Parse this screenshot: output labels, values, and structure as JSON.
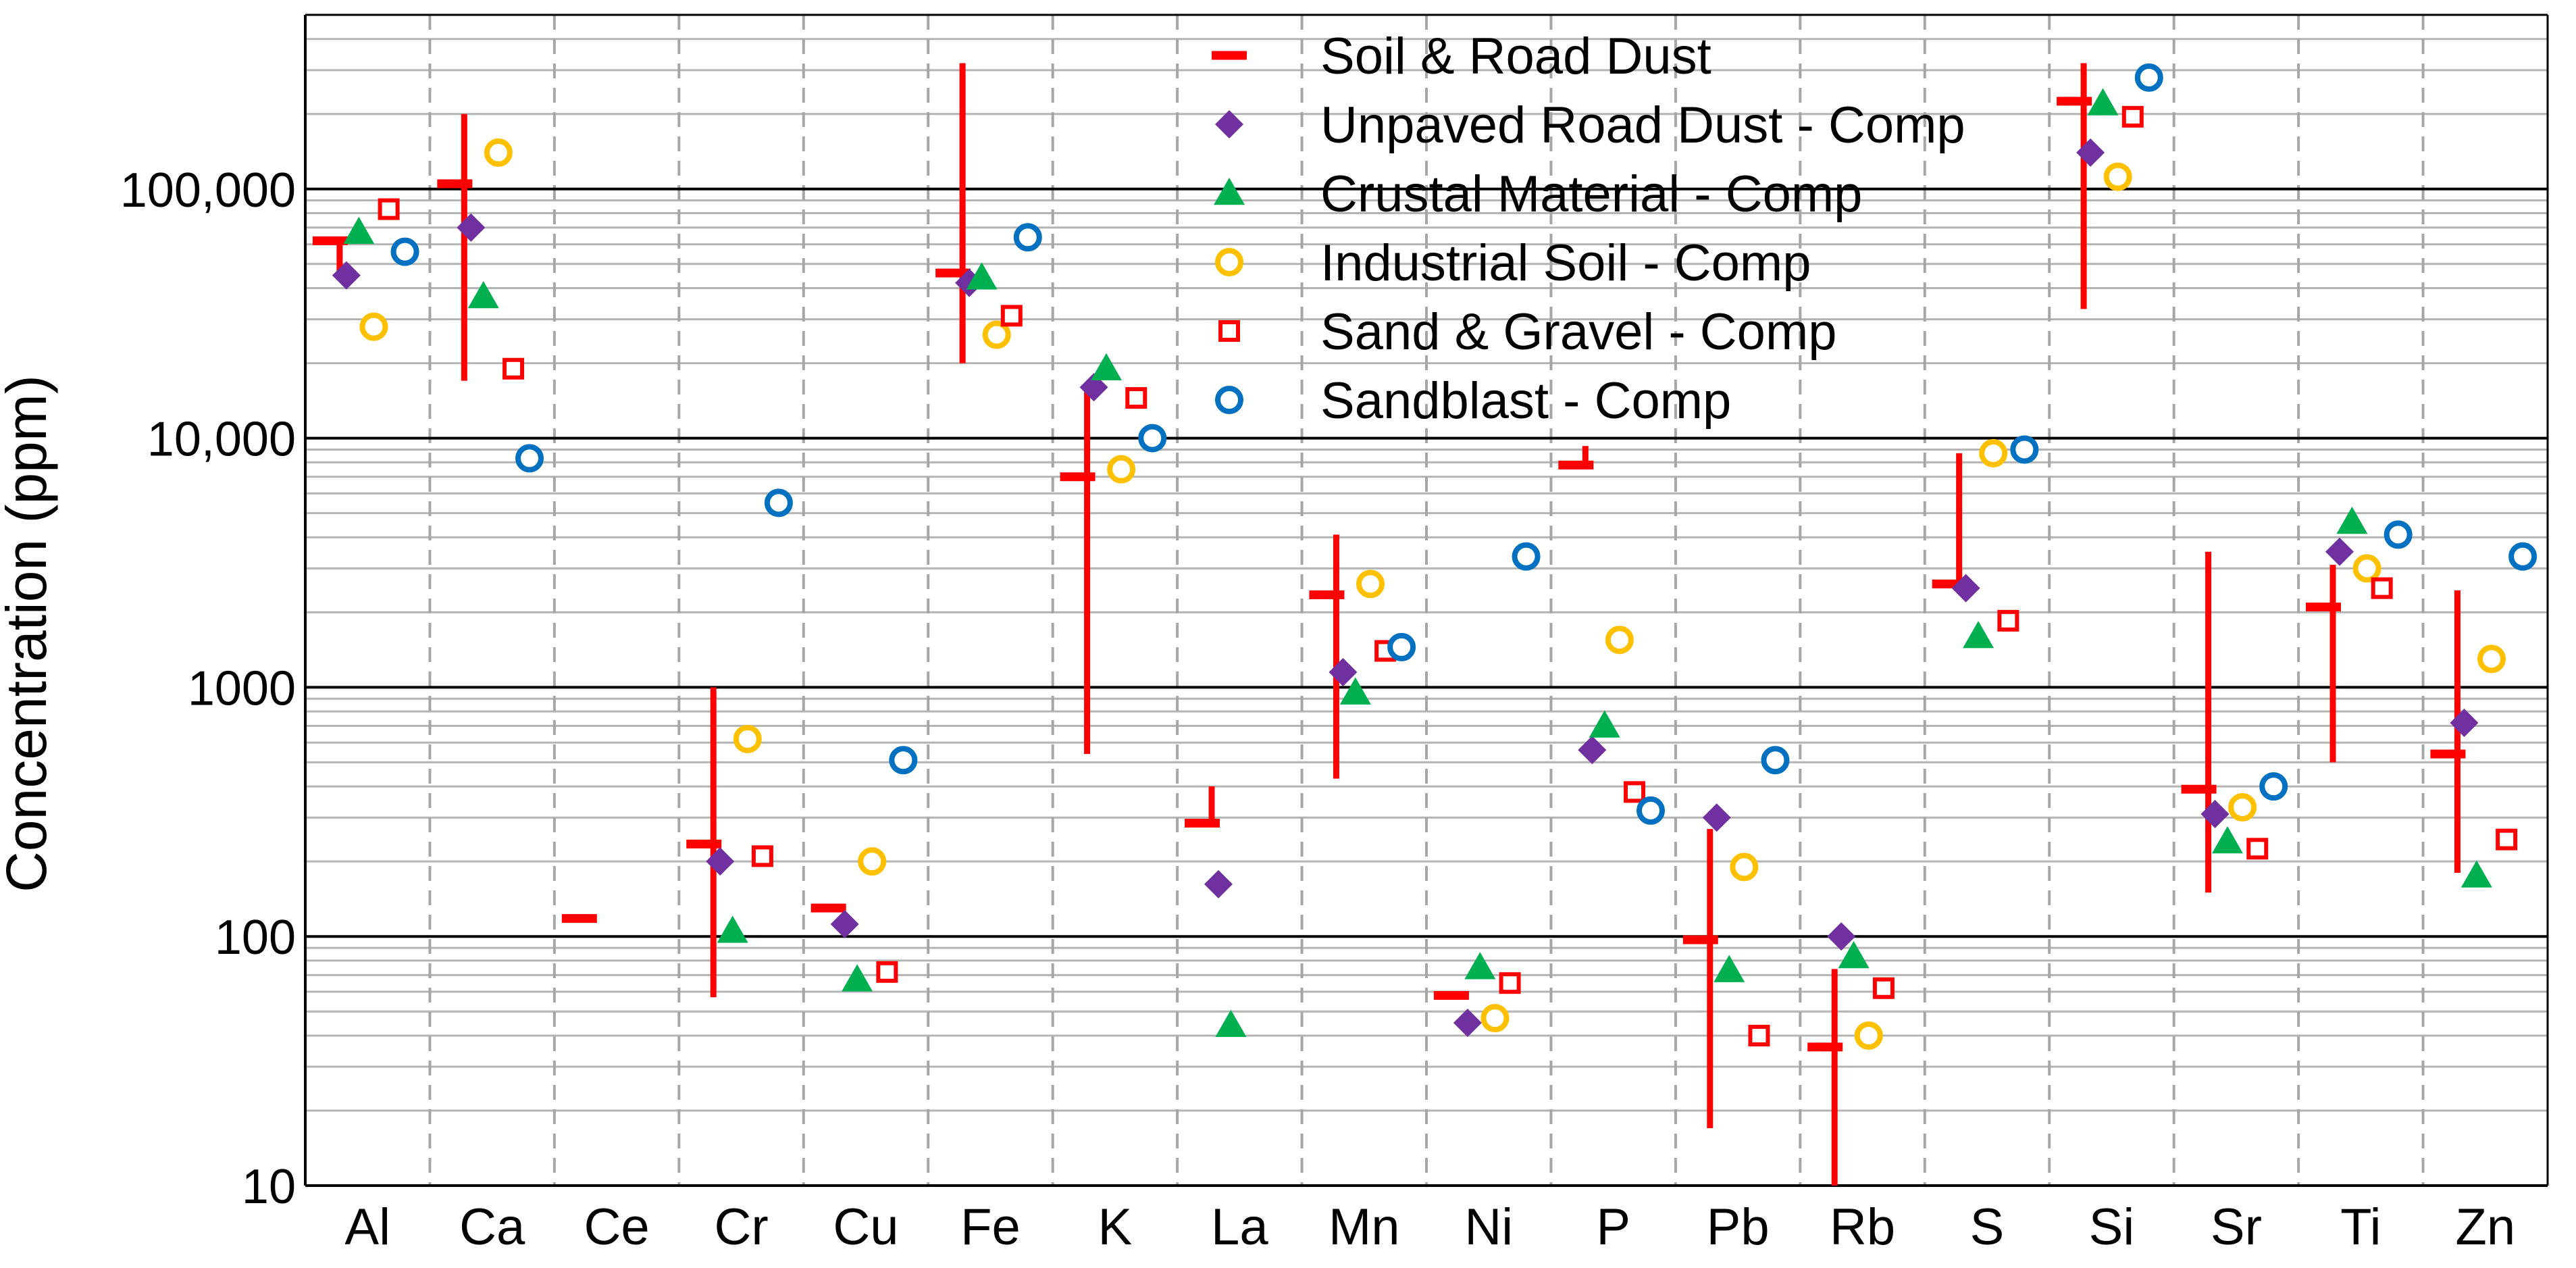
{
  "chart_data": {
    "type": "scatter",
    "ylabel": "Concentration (ppm)",
    "yscale": "log",
    "ylim": [
      10,
      500000
    ],
    "yticks": [
      {
        "value": 10,
        "label": "10"
      },
      {
        "value": 100,
        "label": "100"
      },
      {
        "value": 1000,
        "label": "1000"
      },
      {
        "value": 10000,
        "label": "10,000"
      },
      {
        "value": 100000,
        "label": "100,000"
      }
    ],
    "categories": [
      "Al",
      "Ca",
      "Ce",
      "Cr",
      "Cu",
      "Fe",
      "K",
      "La",
      "Mn",
      "Ni",
      "P",
      "Pb",
      "Rb",
      "S",
      "Si",
      "Sr",
      "Ti",
      "Zn"
    ],
    "grid": true,
    "legend_position": "top-center",
    "series": [
      {
        "name": "Soil & Road Dust",
        "marker": "dash-range",
        "color": "#FF0000",
        "values": [
          62000,
          105000,
          118,
          235,
          130,
          46000,
          7000,
          285,
          2350,
          58,
          7800,
          97,
          36,
          2600,
          225000,
          390,
          2100,
          540
        ],
        "ranges": [
          [
            46000,
            62000
          ],
          [
            17000,
            200000
          ],
          null,
          [
            57,
            1000
          ],
          null,
          [
            20000,
            320000
          ],
          [
            540,
            15500
          ],
          [
            285,
            400
          ],
          [
            430,
            4100
          ],
          null,
          [
            7800,
            9300
          ],
          [
            17,
            270
          ],
          [
            10,
            74
          ],
          [
            2600,
            8700
          ],
          [
            33000,
            320000
          ],
          [
            150,
            3500
          ],
          [
            500,
            3100
          ],
          [
            180,
            2450
          ]
        ]
      },
      {
        "name": "Unpaved Road Dust - Comp",
        "marker": "diamond",
        "color": "#7030A0",
        "values": [
          45000,
          70000,
          null,
          200,
          112,
          42000,
          16000,
          162,
          1150,
          45,
          560,
          300,
          100,
          2500,
          140000,
          310,
          3500,
          720
        ]
      },
      {
        "name": "Crustal Material - Comp",
        "marker": "triangle",
        "color": "#00B050",
        "values": [
          67000,
          37000,
          null,
          105,
          67,
          44000,
          19000,
          44,
          950,
          75,
          700,
          73,
          83,
          1600,
          220000,
          240,
          4600,
          175
        ]
      },
      {
        "name": "Industrial Soil - Comp",
        "marker": "circle-open",
        "color": "#FFC000",
        "values": [
          28000,
          140000,
          null,
          620,
          200,
          26000,
          7500,
          null,
          2600,
          47,
          1550,
          190,
          40,
          8700,
          112000,
          330,
          3000,
          1300
        ]
      },
      {
        "name": "Sand & Gravel - Comp",
        "marker": "square-open",
        "color": "#FF0000",
        "values": [
          83000,
          19000,
          null,
          210,
          72,
          31000,
          14500,
          null,
          1400,
          65,
          380,
          40,
          62,
          1850,
          195000,
          225,
          2500,
          245
        ]
      },
      {
        "name": "Sandblast - Comp",
        "marker": "circle-open",
        "color": "#0070C0",
        "values": [
          56000,
          8300,
          null,
          5500,
          510,
          64000,
          10000,
          null,
          1450,
          3350,
          320,
          510,
          null,
          9000,
          280000,
          400,
          4100,
          3350
        ]
      }
    ]
  }
}
